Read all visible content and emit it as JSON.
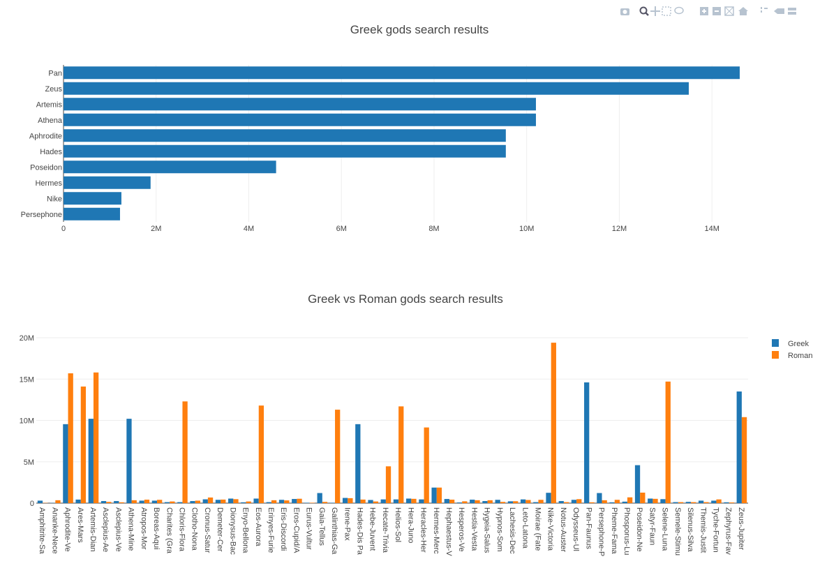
{
  "modebar": {
    "icons": [
      "camera-icon",
      "zoom-icon",
      "pan-icon",
      "box-select-icon",
      "lasso-select-icon",
      "zoom-in-icon",
      "zoom-out-icon",
      "autoscale-icon",
      "reset-axes-icon",
      "spike-lines-icon",
      "hover-closest-icon",
      "hover-compare-icon"
    ]
  },
  "colors": {
    "greek": "#1f77b4",
    "roman": "#ff7f0e",
    "grid": "#eeeeee",
    "text": "#444444"
  },
  "chart_data": [
    {
      "type": "bar",
      "orientation": "horizontal",
      "title": "Greek gods search results",
      "categories": [
        "Pan",
        "Zeus",
        "Artemis",
        "Athena",
        "Aphrodite",
        "Hades",
        "Poseidon",
        "Hermes",
        "Nike",
        "Persephone"
      ],
      "values": [
        14600000,
        13500000,
        10200000,
        10200000,
        9550000,
        9550000,
        4590000,
        1880000,
        1250000,
        1220000
      ],
      "xlim": [
        0,
        14600000
      ],
      "xticks": [
        0,
        2000000,
        4000000,
        6000000,
        8000000,
        10000000,
        12000000,
        14000000
      ],
      "xtick_labels": [
        "0",
        "2M",
        "4M",
        "6M",
        "8M",
        "10M",
        "12M",
        "14M"
      ],
      "xlabel": "",
      "ylabel": ""
    },
    {
      "type": "bar",
      "orientation": "vertical",
      "title": "Greek vs Roman gods search results",
      "categories": [
        "Amphitrite-Sa",
        "Ananke-Nece",
        "Aphrodite-Ve",
        "Ares-Mars",
        "Artemis-Dian",
        "Asclepius-Ae",
        "Asclepius-Ve",
        "Athena-Mine",
        "Atropos-Mor",
        "Boreas-Aqui",
        "Charites (Gra",
        "Chloris-Flora",
        "Clotho-Nona",
        "Cronus-Satur",
        "Demeter-Cer",
        "Dionysus-Bac",
        "Enyo-Bellona",
        "Eos-Aurora",
        "Erinyes-Furie",
        "Eris-Discordi",
        "Eros-Cupid/A",
        "Eurus-Vultur",
        "Gaia-Tellus",
        "Galinthias-Ga",
        "Irene-Pax",
        "Hades-Dis Pa",
        "Hebe-Juvent",
        "Hecate-Trivia",
        "Helios-Sol",
        "Hera-Juno",
        "Heracles-Her",
        "Hermes-Merc",
        "Hephaestus-V",
        "Hesperos-Ve",
        "Hestia-Vesta",
        "Hygeia-Salus",
        "Hypnos-Som",
        "Lachesis-Dec",
        "Leto-Latona",
        "Moirae (Fate",
        "Nike-Victoria",
        "Notus-Auster",
        "Odysseus-Ul",
        "Pan-Faunus",
        "Persephone-P",
        "Pheme-Fama",
        "Phosporus-Lu",
        "Poseidon-Ne",
        "Satyr-Faun",
        "Selene-Luna",
        "Semele-Stimu",
        "Silenus-Silva",
        "Themis-Justit",
        "Tyche-Fortun",
        "Zephyrus-Fav",
        "Zeus-Jupiter"
      ],
      "series": [
        {
          "name": "Greek",
          "values": [
            300000,
            30000,
            9550000,
            430000,
            10200000,
            250000,
            250000,
            10200000,
            300000,
            300000,
            120000,
            120000,
            250000,
            460000,
            400000,
            550000,
            100000,
            550000,
            120000,
            400000,
            500000,
            50000,
            1220000,
            50000,
            630000,
            9550000,
            380000,
            450000,
            450000,
            550000,
            450000,
            1880000,
            500000,
            80000,
            420000,
            250000,
            400000,
            220000,
            450000,
            120000,
            1250000,
            250000,
            400000,
            14600000,
            1220000,
            100000,
            180000,
            4590000,
            550000,
            480000,
            120000,
            150000,
            300000,
            300000,
            100000,
            13500000
          ]
        },
        {
          "name": "Roman",
          "values": [
            30000,
            350000,
            15700000,
            14100000,
            15800000,
            150000,
            100000,
            350000,
            420000,
            400000,
            200000,
            12300000,
            300000,
            680000,
            430000,
            480000,
            200000,
            11800000,
            350000,
            330000,
            530000,
            50000,
            150000,
            11300000,
            600000,
            430000,
            200000,
            4450000,
            11700000,
            520000,
            9150000,
            1880000,
            420000,
            220000,
            350000,
            350000,
            150000,
            230000,
            380000,
            400000,
            19400000,
            120000,
            480000,
            100000,
            350000,
            400000,
            700000,
            1270000,
            520000,
            14700000,
            120000,
            120000,
            120000,
            450000,
            80000,
            10400000
          ]
        }
      ],
      "ylim": [
        0,
        20000000
      ],
      "yticks": [
        0,
        5000000,
        10000000,
        15000000,
        20000000
      ],
      "ytick_labels": [
        "0",
        "5M",
        "10M",
        "15M",
        "20M"
      ],
      "legend": "top-right",
      "xlabel": "",
      "ylabel": ""
    }
  ]
}
